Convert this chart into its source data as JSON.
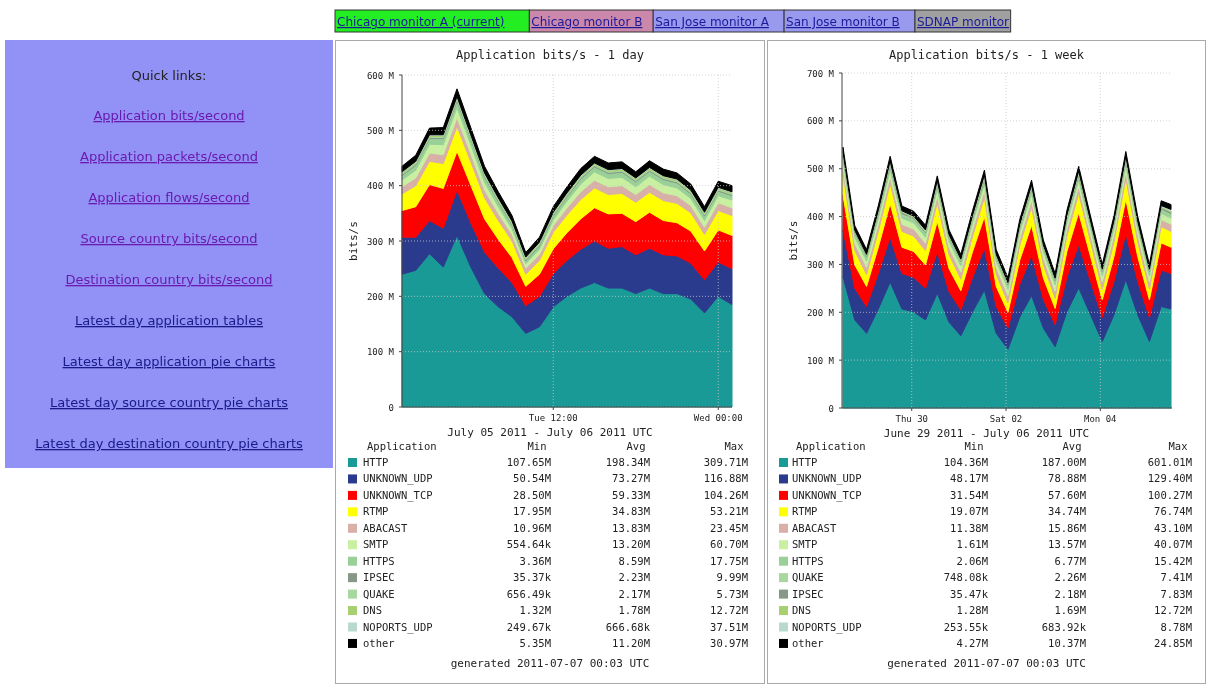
{
  "chart_data": [
    {
      "type": "other",
      "annotations": [
        "Chicago monitor A (current)",
        "Chicago monitor B",
        "San Jose monitor A",
        "San Jose monitor B",
        "SDNAP monitor"
      ],
      "colors": [
        "#22ee22",
        "#cc88aa",
        "#9999ee",
        "#9999ee",
        "#a0a0a0"
      ]
    },
    {
      "type": "other",
      "title": "Quick links:",
      "annotations": [
        "Application bits/second",
        "Application packets/second",
        "Application flows/second",
        "Source country bits/second",
        "Destination country bits/second",
        "Latest day application tables",
        "Latest day application pie charts",
        "Latest day source country pie charts",
        "Latest day destination country pie charts"
      ]
    },
    {
      "type": "area",
      "stacked": true,
      "title": "Application bits/s - 1 day",
      "xlabel": "July 05 2011 - July 06 2011 UTC",
      "ylabel": "bits/s",
      "grid": true,
      "legend": "bottom",
      "x": [
        "2011-07-05T01:00",
        "2011-07-05T02:00",
        "2011-07-05T03:00",
        "2011-07-05T04:00",
        "2011-07-05T05:00",
        "2011-07-05T06:00",
        "2011-07-05T07:00",
        "2011-07-05T08:00",
        "2011-07-05T09:00",
        "2011-07-05T10:00",
        "2011-07-05T11:00",
        "2011-07-05T12:00",
        "2011-07-05T13:00",
        "2011-07-05T14:00",
        "2011-07-05T15:00",
        "2011-07-05T16:00",
        "2011-07-05T17:00",
        "2011-07-05T18:00",
        "2011-07-05T19:00",
        "2011-07-05T20:00",
        "2011-07-05T21:00",
        "2011-07-05T22:00",
        "2011-07-05T23:00",
        "2011-07-06T00:00",
        "2011-07-06T01:00"
      ],
      "xlim": [
        "2011-07-05T01:00",
        "2011-07-06T01:00"
      ],
      "xticks": [
        {
          "value": "2011-07-05T12:00",
          "label": "Tue 12:00"
        },
        {
          "value": "2011-07-06T00:00",
          "label": "Wed 00:00"
        }
      ],
      "ylim": [
        0,
        600
      ],
      "yticks": [
        0,
        {
          "value": 100,
          "label": "100 M"
        },
        {
          "value": 200,
          "label": "200 M"
        },
        {
          "value": 300,
          "label": "300 M"
        },
        {
          "value": 400,
          "label": "400 M"
        },
        {
          "value": 500,
          "label": "500 M"
        },
        {
          "value": 600,
          "label": "600 M"
        }
      ],
      "series": [
        {
          "name": "HTTP",
          "color": "#199a96",
          "values": [
            240,
            247,
            277,
            253,
            310,
            253,
            205,
            181,
            163,
            133,
            145,
            181,
            200,
            215,
            225,
            215,
            215,
            205,
            215,
            205,
            205,
            195,
            170,
            200,
            185
          ]
        },
        {
          "name": "UNKNOWN_UDP",
          "color": "#2a3a8c",
          "values": [
            67,
            60,
            60,
            70,
            82,
            80,
            75,
            70,
            62,
            50,
            55,
            60,
            65,
            70,
            75,
            72,
            75,
            70,
            72,
            70,
            68,
            65,
            60,
            62,
            65
          ]
        },
        {
          "name": "UNKNOWN_TCP",
          "color": "#ff0000",
          "values": [
            48,
            55,
            65,
            72,
            70,
            68,
            60,
            52,
            45,
            35,
            40,
            45,
            50,
            55,
            60,
            62,
            60,
            60,
            65,
            62,
            60,
            58,
            52,
            58,
            60
          ]
        },
        {
          "name": "RTMP",
          "color": "#ffff00",
          "values": [
            30,
            38,
            42,
            45,
            45,
            42,
            38,
            34,
            30,
            22,
            25,
            30,
            32,
            35,
            36,
            35,
            36,
            35,
            36,
            36,
            35,
            33,
            30,
            35,
            36
          ]
        },
        {
          "name": "ABACAST",
          "color": "#d8b0a8",
          "values": [
            13,
            14,
            15,
            16,
            16,
            15,
            14,
            13,
            12,
            11,
            11,
            12,
            13,
            14,
            14,
            14,
            14,
            14,
            14,
            14,
            14,
            13,
            13,
            14,
            14
          ]
        },
        {
          "name": "SMTP",
          "color": "#c8f0a0",
          "values": [
            12,
            14,
            16,
            18,
            18,
            16,
            14,
            12,
            10,
            8,
            9,
            10,
            12,
            14,
            15,
            15,
            15,
            14,
            15,
            15,
            14,
            13,
            12,
            13,
            14
          ]
        },
        {
          "name": "HTTPS",
          "color": "#98d098",
          "values": [
            8,
            9,
            10,
            11,
            12,
            11,
            10,
            9,
            7,
            5,
            6,
            7,
            8,
            9,
            9,
            9,
            9,
            9,
            9,
            9,
            9,
            8,
            8,
            8,
            8
          ]
        },
        {
          "name": "IPSEC",
          "color": "#889888",
          "values": [
            2,
            2,
            2,
            2,
            3,
            2,
            2,
            2,
            2,
            2,
            2,
            2,
            2,
            2,
            2,
            2,
            2,
            2,
            2,
            2,
            2,
            2,
            2,
            2,
            2
          ]
        },
        {
          "name": "QUAKE",
          "color": "#a8d8a0",
          "values": [
            2,
            2,
            2,
            2,
            2,
            2,
            2,
            2,
            2,
            2,
            2,
            2,
            2,
            2,
            2,
            2,
            2,
            2,
            2,
            2,
            2,
            2,
            2,
            2,
            2
          ]
        },
        {
          "name": "DNS",
          "color": "#a8d070",
          "values": [
            2,
            2,
            2,
            2,
            2,
            2,
            2,
            2,
            2,
            2,
            2,
            2,
            2,
            2,
            2,
            2,
            2,
            2,
            2,
            2,
            2,
            2,
            2,
            2,
            2
          ]
        },
        {
          "name": "NOPORTS_UDP",
          "color": "#b8d8d0",
          "values": [
            1,
            1,
            1,
            1,
            1,
            1,
            1,
            1,
            1,
            1,
            1,
            1,
            1,
            1,
            1,
            1,
            1,
            1,
            1,
            1,
            1,
            1,
            1,
            1,
            1
          ]
        },
        {
          "name": "other",
          "color": "#000000",
          "values": [
            10,
            11,
            12,
            13,
            14,
            13,
            12,
            11,
            10,
            8,
            9,
            10,
            11,
            12,
            12,
            12,
            12,
            11,
            12,
            12,
            11,
            11,
            10,
            11,
            11
          ]
        }
      ],
      "annotations": [
        "Application",
        "Min",
        "Avg",
        "Max",
        "107.65M",
        "198.34M",
        "309.71M",
        "50.54M",
        "73.27M",
        "116.88M",
        "28.50M",
        "59.33M",
        "104.26M",
        "17.95M",
        "34.83M",
        "53.21M",
        "10.96M",
        "13.83M",
        "23.45M",
        "554.64k",
        "13.20M",
        "60.70M",
        "3.36M",
        "8.59M",
        "17.75M",
        "35.37k",
        "2.23M",
        "9.99M",
        "656.49k",
        "2.17M",
        "5.73M",
        "1.32M",
        "1.78M",
        "12.72M",
        "249.67k",
        "666.68k",
        "37.51M",
        "5.35M",
        "11.20M",
        "30.97M",
        "generated 2011-07-07 00:03 UTC"
      ]
    },
    {
      "type": "area",
      "stacked": true,
      "title": "Application bits/s - 1 week",
      "xlabel": "June 29 2011 - July 06 2011 UTC",
      "ylabel": "bits/s",
      "grid": true,
      "legend": "bottom",
      "x": [
        "2011-06-28T13:00",
        "2011-06-28T19:00",
        "2011-06-29T01:00",
        "2011-06-29T07:00",
        "2011-06-29T13:00",
        "2011-06-29T19:00",
        "2011-06-30T01:00",
        "2011-06-30T07:00",
        "2011-06-30T13:00",
        "2011-06-30T19:00",
        "2011-07-01T01:00",
        "2011-07-01T07:00",
        "2011-07-01T13:00",
        "2011-07-01T19:00",
        "2011-07-02T01:00",
        "2011-07-02T07:00",
        "2011-07-02T13:00",
        "2011-07-02T19:00",
        "2011-07-03T01:00",
        "2011-07-03T07:00",
        "2011-07-03T13:00",
        "2011-07-03T19:00",
        "2011-07-04T01:00",
        "2011-07-04T07:00",
        "2011-07-04T13:00",
        "2011-07-04T19:00",
        "2011-07-05T01:00",
        "2011-07-05T07:00",
        "2011-07-05T12:00"
      ],
      "xlim": [
        "2011-06-28T12:30",
        "2011-07-05T12:30"
      ],
      "xticks": [
        {
          "value": "2011-06-30T00:00",
          "label": "Thu 30"
        },
        {
          "value": "2011-07-02T00:00",
          "label": "Sat 02"
        },
        {
          "value": "2011-07-04T00:00",
          "label": "Mon 04"
        }
      ],
      "ylim": [
        0,
        700
      ],
      "yticks": [
        0,
        {
          "value": 100,
          "label": "100 M"
        },
        {
          "value": 200,
          "label": "200 M"
        },
        {
          "value": 300,
          "label": "300 M"
        },
        {
          "value": 400,
          "label": "400 M"
        },
        {
          "value": 500,
          "label": "500 M"
        },
        {
          "value": 600,
          "label": "600 M"
        },
        {
          "value": 700,
          "label": "700 M"
        }
      ],
      "series": [
        {
          "name": "HTTP",
          "color": "#199a96",
          "values": [
            274,
            184,
            156,
            207,
            263,
            207,
            201,
            184,
            240,
            179,
            151,
            201,
            246,
            156,
            123,
            190,
            235,
            167,
            128,
            201,
            251,
            195,
            139,
            195,
            268,
            195,
            139,
            212,
            207
          ]
        },
        {
          "name": "UNKNOWN_UDP",
          "color": "#2a3a8c",
          "values": [
            98,
            66,
            56,
            74,
            94,
            74,
            72,
            66,
            86,
            64,
            54,
            72,
            88,
            56,
            44,
            68,
            84,
            60,
            46,
            72,
            90,
            70,
            50,
            70,
            96,
            70,
            50,
            76,
            74
          ]
        },
        {
          "name": "UNKNOWN_TCP",
          "color": "#ff0000",
          "values": [
            73,
            49,
            42,
            55,
            70,
            55,
            54,
            49,
            64,
            48,
            40,
            54,
            66,
            42,
            33,
            51,
            63,
            45,
            34,
            54,
            67,
            52,
            37,
            52,
            72,
            52,
            37,
            57,
            55
          ]
        },
        {
          "name": "RTMP",
          "color": "#ffff00",
          "values": [
            44,
            30,
            25,
            33,
            42,
            33,
            32,
            30,
            39,
            29,
            24,
            32,
            40,
            25,
            20,
            31,
            38,
            27,
            21,
            32,
            40,
            31,
            22,
            31,
            43,
            31,
            22,
            34,
            33
          ]
        },
        {
          "name": "ABACAST",
          "color": "#d8b0a8",
          "values": [
            15,
            15,
            15,
            15,
            15,
            15,
            15,
            15,
            15,
            15,
            15,
            15,
            15,
            15,
            15,
            15,
            15,
            15,
            15,
            15,
            15,
            15,
            15,
            15,
            15,
            15,
            15,
            15,
            15
          ]
        },
        {
          "name": "SMTP",
          "color": "#c8f0a0",
          "values": [
            13,
            13,
            13,
            13,
            13,
            13,
            13,
            13,
            13,
            13,
            13,
            13,
            13,
            13,
            13,
            13,
            13,
            13,
            13,
            13,
            13,
            13,
            13,
            13,
            13,
            13,
            13,
            13,
            13
          ]
        },
        {
          "name": "HTTPS",
          "color": "#98d098",
          "values": [
            7,
            7,
            7,
            7,
            7,
            7,
            7,
            7,
            7,
            7,
            7,
            7,
            7,
            7,
            7,
            7,
            7,
            7,
            7,
            7,
            7,
            7,
            7,
            7,
            7,
            7,
            7,
            7,
            7
          ]
        },
        {
          "name": "QUAKE",
          "color": "#a8d8a0",
          "values": [
            2,
            2,
            2,
            2,
            2,
            2,
            2,
            2,
            2,
            2,
            2,
            2,
            2,
            2,
            2,
            2,
            2,
            2,
            2,
            2,
            2,
            2,
            2,
            2,
            2,
            2,
            2,
            2,
            2
          ]
        },
        {
          "name": "IPSEC",
          "color": "#889888",
          "values": [
            3,
            2,
            2,
            3,
            4,
            3,
            2,
            2,
            3,
            2,
            2,
            3,
            4,
            2,
            2,
            3,
            3,
            2,
            2,
            3,
            4,
            3,
            2,
            3,
            4,
            3,
            2,
            3,
            3
          ]
        },
        {
          "name": "DNS",
          "color": "#a8d070",
          "values": [
            3,
            2,
            2,
            2,
            3,
            2,
            2,
            2,
            3,
            2,
            2,
            2,
            3,
            2,
            2,
            2,
            3,
            2,
            2,
            2,
            3,
            2,
            2,
            2,
            3,
            2,
            2,
            2,
            3
          ]
        },
        {
          "name": "NOPORTS_UDP",
          "color": "#b8d8d0",
          "values": [
            3,
            1,
            1,
            2,
            3,
            1,
            1,
            2,
            3,
            1,
            1,
            2,
            3,
            1,
            1,
            2,
            3,
            1,
            1,
            2,
            3,
            1,
            1,
            2,
            3,
            1,
            1,
            2,
            3
          ]
        },
        {
          "name": "other",
          "color": "#000000",
          "values": [
            10,
            10,
            10,
            10,
            10,
            10,
            10,
            10,
            10,
            10,
            10,
            10,
            10,
            10,
            10,
            10,
            10,
            10,
            10,
            10,
            10,
            10,
            10,
            10,
            10,
            10,
            10,
            10,
            10
          ]
        }
      ],
      "annotations": [
        "Application",
        "Min",
        "Avg",
        "Max",
        "104.36M",
        "187.00M",
        "601.01M",
        "48.17M",
        "78.88M",
        "129.40M",
        "31.54M",
        "57.60M",
        "100.27M",
        "19.07M",
        "34.74M",
        "76.74M",
        "11.38M",
        "15.86M",
        "43.10M",
        "1.61M",
        "13.57M",
        "40.07M",
        "2.06M",
        "6.77M",
        "15.42M",
        "748.08k",
        "2.26M",
        "7.41M",
        "35.47k",
        "2.18M",
        "7.83M",
        "1.28M",
        "1.69M",
        "12.72M",
        "253.55k",
        "683.92k",
        "8.78M",
        "4.27M",
        "10.37M",
        "24.85M",
        "generated 2011-07-07 00:03 UTC"
      ]
    }
  ]
}
